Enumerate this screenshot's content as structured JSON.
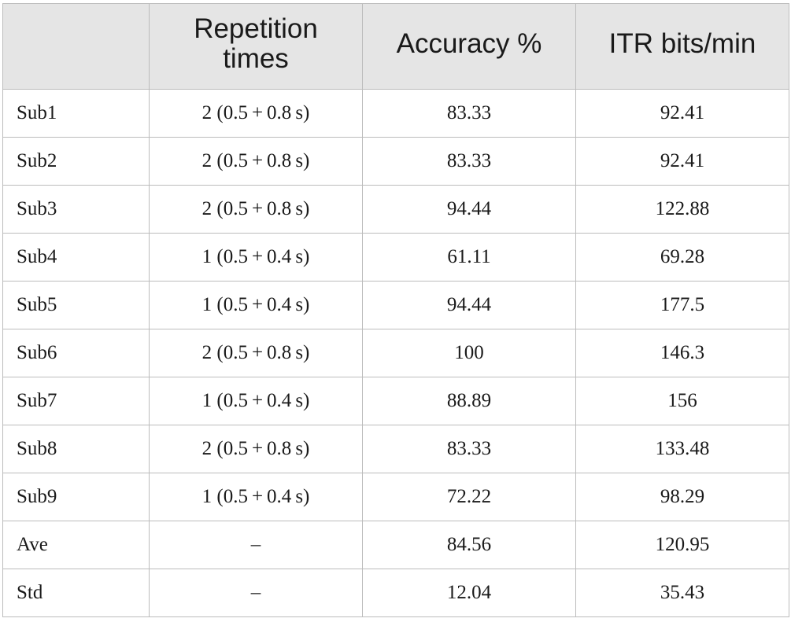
{
  "table": {
    "headers": [
      "",
      "Repetition times",
      "Accuracy %",
      "ITR bits/min"
    ],
    "rows": [
      {
        "label": "Sub1",
        "repetition": "2 (0.5 + 0.8 s)",
        "accuracy": "83.33",
        "itr": "92.41"
      },
      {
        "label": "Sub2",
        "repetition": "2 (0.5 + 0.8 s)",
        "accuracy": "83.33",
        "itr": "92.41"
      },
      {
        "label": "Sub3",
        "repetition": "2 (0.5 + 0.8 s)",
        "accuracy": "94.44",
        "itr": "122.88"
      },
      {
        "label": "Sub4",
        "repetition": "1 (0.5 + 0.4 s)",
        "accuracy": "61.11",
        "itr": "69.28"
      },
      {
        "label": "Sub5",
        "repetition": "1 (0.5 + 0.4 s)",
        "accuracy": "94.44",
        "itr": "177.5"
      },
      {
        "label": "Sub6",
        "repetition": "2 (0.5 + 0.8 s)",
        "accuracy": "100",
        "itr": "146.3"
      },
      {
        "label": "Sub7",
        "repetition": "1 (0.5 + 0.4 s)",
        "accuracy": "88.89",
        "itr": "156"
      },
      {
        "label": "Sub8",
        "repetition": "2 (0.5 + 0.8 s)",
        "accuracy": "83.33",
        "itr": "133.48"
      },
      {
        "label": "Sub9",
        "repetition": "1 (0.5 + 0.4 s)",
        "accuracy": "72.22",
        "itr": "98.29"
      },
      {
        "label": "Ave",
        "repetition": "–",
        "accuracy": "84.56",
        "itr": "120.95"
      },
      {
        "label": "Std",
        "repetition": "–",
        "accuracy": "12.04",
        "itr": "35.43"
      }
    ]
  },
  "colors": {
    "header_background": "#e5e5e5",
    "border": "#bcbcbc",
    "text": "#1a1a1a"
  }
}
